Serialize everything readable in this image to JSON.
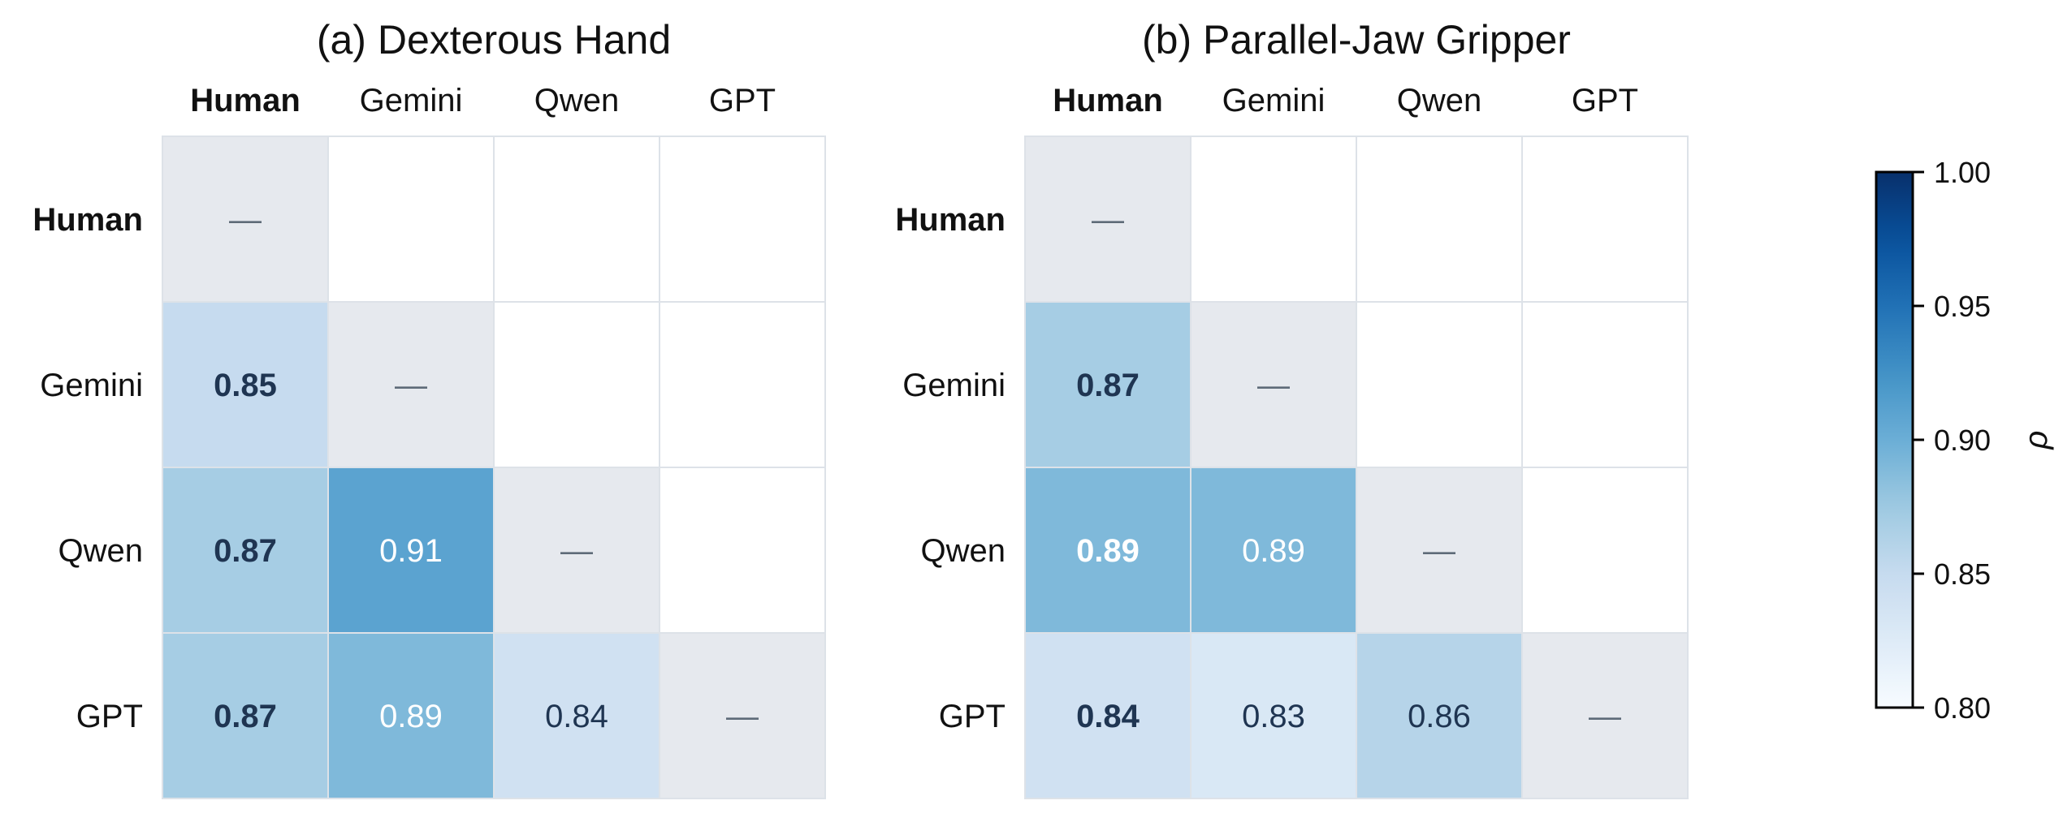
{
  "chart_data": [
    {
      "type": "heatmap",
      "title": "(a) Dexterous Hand",
      "columns": [
        "Human",
        "Gemini",
        "Qwen",
        "GPT"
      ],
      "rows": [
        "Human",
        "Gemini",
        "Qwen",
        "GPT"
      ],
      "diagonal_label": "—",
      "values": [
        [
          null,
          null,
          null,
          null
        ],
        [
          0.85,
          null,
          null,
          null
        ],
        [
          0.87,
          0.91,
          null,
          null
        ],
        [
          0.87,
          0.89,
          0.84,
          null
        ]
      ]
    },
    {
      "type": "heatmap",
      "title": "(b) Parallel-Jaw Gripper",
      "columns": [
        "Human",
        "Gemini",
        "Qwen",
        "GPT"
      ],
      "rows": [
        "Human",
        "Gemini",
        "Qwen",
        "GPT"
      ],
      "diagonal_label": "—",
      "values": [
        [
          null,
          null,
          null,
          null
        ],
        [
          0.87,
          null,
          null,
          null
        ],
        [
          0.89,
          0.89,
          null,
          null
        ],
        [
          0.84,
          0.83,
          0.86,
          null
        ]
      ]
    }
  ],
  "colorbar": {
    "label": "ρ",
    "range": [
      0.8,
      1.0
    ],
    "ticks": [
      "1.00",
      "0.95",
      "0.90",
      "0.85",
      "0.80"
    ],
    "colormap": "Blues"
  },
  "colors": {
    "diagonal_fill": "#e6e9ee",
    "empty_fill": "#ffffff",
    "grid_line": "#dde2e8",
    "dark_text": "#1f3552",
    "light_text": "#ffffff",
    "dash_color": "#5e6b78"
  }
}
